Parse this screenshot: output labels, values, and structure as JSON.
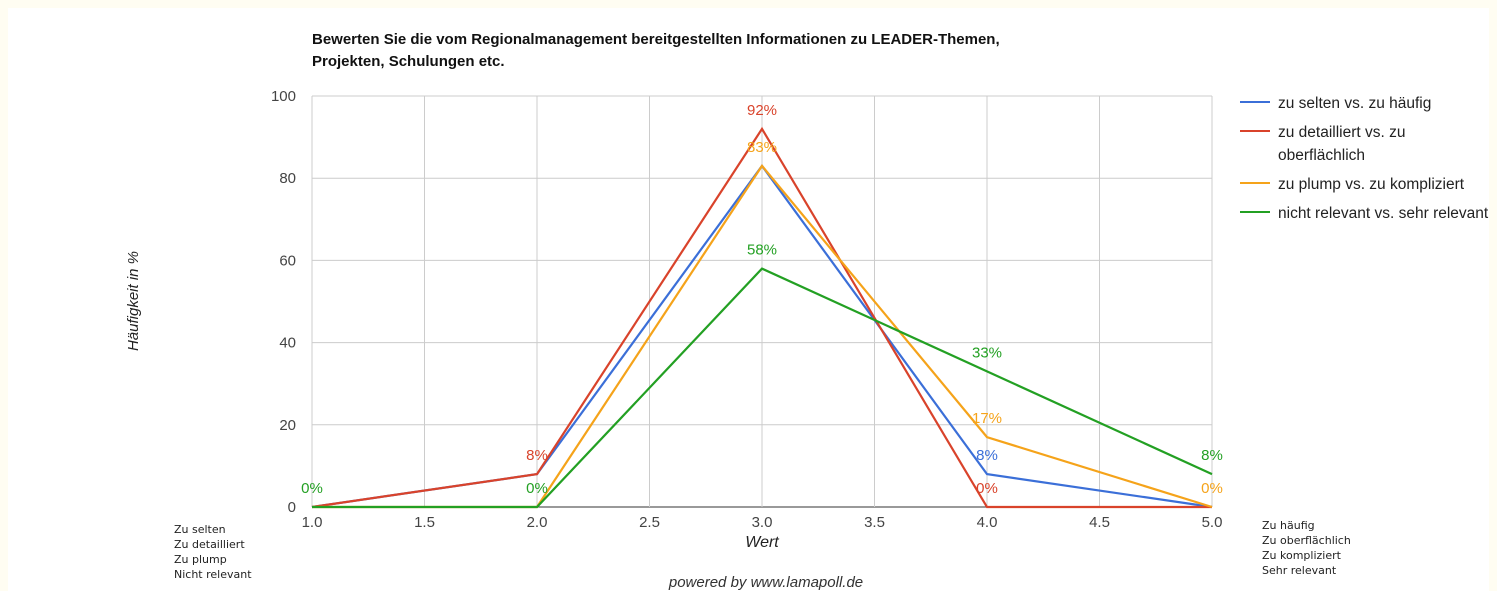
{
  "chart_data": {
    "type": "line",
    "title_lines": [
      "Bewerten Sie die vom Regionalmanagement bereitgestellten Informationen zu LEADER-Themen,",
      "Projekten, Schulungen etc."
    ],
    "y_label": "Häufigkeit in %",
    "x_label": "Wert",
    "footer": "powered by www.lamapoll.de",
    "left_annotations": [
      "Zu selten",
      "Zu detailliert",
      "Zu plump",
      "Nicht relevant"
    ],
    "right_annotations": [
      "Zu häufig",
      "Zu oberflächlich",
      "Zu kompliziert",
      "Sehr relevant"
    ],
    "x": [
      1,
      2,
      3,
      4,
      5
    ],
    "xlim": [
      1,
      5
    ],
    "xticks": [
      {
        "value": 1,
        "label": "1.0"
      },
      {
        "value": 1.5,
        "label": "1.5"
      },
      {
        "value": 2,
        "label": "2.0"
      },
      {
        "value": 2.5,
        "label": "2.5"
      },
      {
        "value": 3,
        "label": "3.0"
      },
      {
        "value": 3.5,
        "label": "3.5"
      },
      {
        "value": 4,
        "label": "4.0"
      },
      {
        "value": 4.5,
        "label": "4.5"
      },
      {
        "value": 5,
        "label": "5.0"
      }
    ],
    "ylim": [
      0,
      100
    ],
    "yticks": [
      0,
      20,
      40,
      60,
      80,
      100
    ],
    "grid": true,
    "legend": "right",
    "series": [
      {
        "name": "zu selten vs. zu häufig",
        "color": "#3b6fd8",
        "values": [
          0,
          8,
          83,
          8,
          0
        ],
        "value_labels": [
          null,
          null,
          null,
          "8%",
          null
        ]
      },
      {
        "name": "zu detailliert vs. zu oberflächlich",
        "color": "#d9432b",
        "values": [
          0,
          8,
          92,
          0,
          0
        ],
        "value_labels": [
          null,
          "8%",
          "92%",
          "0%",
          null
        ]
      },
      {
        "name": "zu plump vs. zu kompliziert",
        "color": "#f5a31a",
        "values": [
          0,
          0,
          83,
          17,
          0
        ],
        "value_labels": [
          null,
          null,
          "83%",
          "17%",
          "0%"
        ]
      },
      {
        "name": "nicht relevant vs. sehr relevant",
        "color": "#23a023",
        "values": [
          0,
          0,
          58,
          33,
          8
        ],
        "value_labels": [
          "0%",
          "0%",
          "58%",
          "33%",
          "8%"
        ]
      }
    ]
  }
}
